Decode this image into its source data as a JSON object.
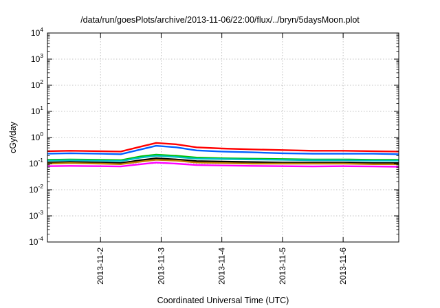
{
  "chart_data": {
    "type": "line",
    "title": "/data/run/goesPlots/archive/2013-11-06/22:00/flux/../bryn/5daysMoon.plot",
    "xlabel": "Coordinated Universal Time (UTC)",
    "ylabel": "cGy/day",
    "yscale": "log",
    "ylim": [
      0.0001,
      10000
    ],
    "xlim": [
      "2013-11-01T03:00",
      "2013-11-06T22:00"
    ],
    "grid": true,
    "y_ticks": [
      {
        "base": "10",
        "exp": "-4"
      },
      {
        "base": "10",
        "exp": "-3"
      },
      {
        "base": "10",
        "exp": "-2"
      },
      {
        "base": "10",
        "exp": "-1"
      },
      {
        "base": "10",
        "exp": "0"
      },
      {
        "base": "10",
        "exp": "1"
      },
      {
        "base": "10",
        "exp": "2"
      },
      {
        "base": "10",
        "exp": "3"
      },
      {
        "base": "10",
        "exp": "4"
      }
    ],
    "x_ticks": [
      "2013-11-2",
      "2013-11-3",
      "2013-11-4",
      "2013-11-5",
      "2013-11-6"
    ],
    "x": [
      "2013-11-01T03:00",
      "2013-11-01T12:00",
      "2013-11-02T00:00",
      "2013-11-02T08:00",
      "2013-11-02T16:00",
      "2013-11-02T22:00",
      "2013-11-03T06:00",
      "2013-11-03T14:00",
      "2013-11-04T00:00",
      "2013-11-04T12:00",
      "2013-11-05T00:00",
      "2013-11-05T12:00",
      "2013-11-06T00:00",
      "2013-11-06T12:00",
      "2013-11-06T22:00"
    ],
    "series": [
      {
        "color": "#ff0000",
        "values": [
          0.3,
          0.31,
          0.3,
          0.29,
          0.45,
          0.62,
          0.55,
          0.42,
          0.38,
          0.35,
          0.33,
          0.31,
          0.31,
          0.3,
          0.29
        ]
      },
      {
        "color": "#0060ff",
        "values": [
          0.24,
          0.25,
          0.24,
          0.23,
          0.35,
          0.48,
          0.42,
          0.32,
          0.29,
          0.27,
          0.25,
          0.24,
          0.24,
          0.24,
          0.23
        ]
      },
      {
        "color": "#00c000",
        "values": [
          0.14,
          0.145,
          0.14,
          0.135,
          0.19,
          0.22,
          0.2,
          0.17,
          0.16,
          0.155,
          0.15,
          0.145,
          0.145,
          0.14,
          0.14
        ]
      },
      {
        "color": "#00c0c0",
        "values": [
          0.13,
          0.135,
          0.13,
          0.125,
          0.17,
          0.2,
          0.18,
          0.155,
          0.15,
          0.145,
          0.14,
          0.135,
          0.135,
          0.13,
          0.13
        ]
      },
      {
        "color": "#000000",
        "values": [
          0.11,
          0.115,
          0.11,
          0.105,
          0.135,
          0.16,
          0.145,
          0.125,
          0.12,
          0.115,
          0.11,
          0.11,
          0.11,
          0.105,
          0.105
        ]
      },
      {
        "color": "#c08000",
        "values": [
          0.1,
          0.105,
          0.1,
          0.095,
          0.12,
          0.14,
          0.13,
          0.11,
          0.105,
          0.1,
          0.1,
          0.1,
          0.1,
          0.095,
          0.095
        ]
      },
      {
        "color": "#ff00ff",
        "values": [
          0.08,
          0.082,
          0.08,
          0.078,
          0.095,
          0.11,
          0.1,
          0.088,
          0.085,
          0.082,
          0.08,
          0.078,
          0.08,
          0.078,
          0.076
        ]
      }
    ]
  }
}
